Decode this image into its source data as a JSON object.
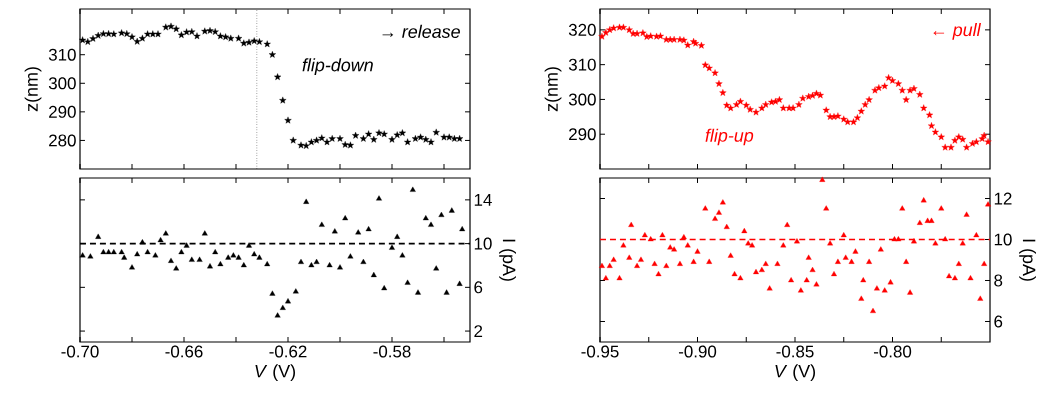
{
  "chart_data": [
    {
      "type": "scatter",
      "ylabel": "z(nm)",
      "marker": "star",
      "tick_labels": "y",
      "xlim": [
        -0.7,
        -0.55
      ],
      "xticks": [
        {
          "value": -0.7,
          "label": null
        },
        {
          "value": -0.68,
          "label": null
        },
        {
          "value": -0.66,
          "label": null
        },
        {
          "value": -0.64,
          "label": null
        },
        {
          "value": -0.62,
          "label": null
        },
        {
          "value": -0.6,
          "label": null
        },
        {
          "value": -0.58,
          "label": null
        },
        {
          "value": -0.56,
          "label": null
        }
      ],
      "ylim": [
        270,
        326
      ],
      "yticks": [
        280,
        290,
        300,
        310
      ],
      "annotations": [
        "→ release",
        "flip-down"
      ],
      "ref_lines": [
        {
          "axis": "x",
          "value": -0.632,
          "line_style": "dotted",
          "color": "#000000"
        }
      ],
      "series": [
        {
          "color": "#000000",
          "x": [
            -0.699,
            -0.697,
            -0.695,
            -0.693,
            -0.691,
            -0.689,
            -0.687,
            -0.684,
            -0.682,
            -0.68,
            -0.678,
            -0.676,
            -0.674,
            -0.672,
            -0.67,
            -0.667,
            -0.665,
            -0.663,
            -0.661,
            -0.659,
            -0.657,
            -0.655,
            -0.652,
            -0.65,
            -0.648,
            -0.646,
            -0.644,
            -0.642,
            -0.639,
            -0.637,
            -0.635,
            -0.633,
            -0.631,
            -0.628,
            -0.626,
            -0.624,
            -0.622,
            -0.62,
            -0.618,
            -0.615,
            -0.613,
            -0.611,
            -0.609,
            -0.607,
            -0.605,
            -0.603,
            -0.6,
            -0.598,
            -0.596,
            -0.594,
            -0.591,
            -0.589,
            -0.587,
            -0.585,
            -0.583,
            -0.58,
            -0.578,
            -0.576,
            -0.574,
            -0.571,
            -0.569,
            -0.567,
            -0.565,
            -0.563,
            -0.56,
            -0.558,
            -0.556,
            -0.554
          ],
          "values": [
            315.1,
            314.5,
            315.6,
            316.7,
            317.3,
            317.3,
            317.2,
            317.6,
            317.3,
            316.2,
            314.6,
            315.7,
            317.2,
            317.2,
            317.2,
            319.6,
            319.9,
            319.0,
            316.9,
            317.9,
            318.0,
            316.5,
            318.2,
            318.4,
            318.0,
            316.5,
            316.2,
            315.7,
            315.7,
            314.0,
            314.3,
            314.8,
            314.5,
            313.7,
            310.0,
            302.2,
            294.0,
            287.0,
            280.0,
            278.3,
            278.1,
            279.4,
            280.0,
            280.8,
            279.4,
            280.6,
            280.6,
            278.5,
            278.3,
            281.7,
            280.6,
            282.2,
            280.3,
            282.6,
            282.2,
            280.3,
            281.9,
            282.6,
            279.4,
            280.6,
            281.1,
            280.3,
            279.4,
            282.8,
            281.1,
            281.1,
            280.6,
            280.6
          ]
        }
      ]
    },
    {
      "type": "scatter",
      "ylabel": "z(nm)",
      "marker": "star",
      "tick_labels": "y",
      "xlim": [
        -0.95,
        -0.75
      ],
      "xticks": [
        {
          "value": -0.95,
          "label": null
        },
        {
          "value": -0.925,
          "label": null
        },
        {
          "value": -0.9,
          "label": null
        },
        {
          "value": -0.875,
          "label": null
        },
        {
          "value": -0.85,
          "label": null
        },
        {
          "value": -0.825,
          "label": null
        },
        {
          "value": -0.8,
          "label": null
        },
        {
          "value": -0.775,
          "label": null
        }
      ],
      "ylim": [
        280,
        326
      ],
      "yticks": [
        290,
        300,
        310,
        320
      ],
      "annotations": [
        "← pull",
        "flip-up"
      ],
      "series": [
        {
          "color": "#ff0000",
          "x": [
            -0.949,
            -0.947,
            -0.945,
            -0.943,
            -0.94,
            -0.938,
            -0.935,
            -0.933,
            -0.931,
            -0.928,
            -0.926,
            -0.924,
            -0.921,
            -0.919,
            -0.916,
            -0.914,
            -0.912,
            -0.909,
            -0.907,
            -0.905,
            -0.902,
            -0.901,
            -0.898,
            -0.896,
            -0.894,
            -0.891,
            -0.889,
            -0.887,
            -0.885,
            -0.883,
            -0.88,
            -0.878,
            -0.875,
            -0.873,
            -0.87,
            -0.867,
            -0.865,
            -0.862,
            -0.86,
            -0.858,
            -0.856,
            -0.853,
            -0.851,
            -0.848,
            -0.846,
            -0.843,
            -0.841,
            -0.839,
            -0.837,
            -0.834,
            -0.832,
            -0.83,
            -0.828,
            -0.825,
            -0.823,
            -0.82,
            -0.818,
            -0.816,
            -0.814,
            -0.812,
            -0.809,
            -0.807,
            -0.804,
            -0.802,
            -0.8,
            -0.797,
            -0.795,
            -0.793,
            -0.791,
            -0.789,
            -0.786,
            -0.784,
            -0.781,
            -0.78,
            -0.778,
            -0.775,
            -0.773,
            -0.77,
            -0.768,
            -0.766,
            -0.764,
            -0.762,
            -0.759,
            -0.757,
            -0.754,
            -0.753,
            -0.751
          ],
          "values": [
            318.1,
            319.2,
            320.0,
            320.5,
            320.7,
            320.7,
            320.0,
            318.9,
            318.9,
            319.1,
            318.0,
            318.2,
            318.1,
            318.2,
            317.2,
            317.2,
            317.2,
            317.2,
            317.0,
            315.6,
            316.6,
            316.1,
            315.5,
            309.9,
            309.0,
            307.6,
            304.5,
            301.9,
            298.3,
            297.5,
            298.5,
            299.4,
            298.3,
            297.1,
            296.3,
            297.5,
            298.5,
            299.2,
            299.4,
            299.9,
            297.5,
            297.5,
            297.5,
            298.5,
            300.3,
            300.8,
            301.1,
            301.7,
            301.2,
            296.9,
            295.0,
            295.0,
            295.2,
            294.3,
            293.5,
            293.5,
            294.7,
            296.6,
            298.5,
            299.9,
            302.6,
            303.3,
            303.8,
            306.2,
            305.4,
            304.5,
            302.6,
            299.9,
            302.6,
            303.1,
            301.4,
            297.5,
            295.5,
            292.4,
            290.6,
            289.2,
            286.2,
            286.2,
            288.2,
            289.2,
            288.5,
            286.2,
            287.3,
            287.8,
            288.7,
            289.6,
            287.8
          ]
        }
      ]
    },
    {
      "type": "scatter",
      "xlabel": "*V* (V)",
      "y2label": "I (pA)",
      "marker": "triangle",
      "xlim": [
        -0.7,
        -0.55
      ],
      "xticks": [
        {
          "value": -0.7,
          "label": "-0.70"
        },
        {
          "value": -0.68,
          "label": null
        },
        {
          "value": -0.66,
          "label": "-0.66"
        },
        {
          "value": -0.64,
          "label": null
        },
        {
          "value": -0.62,
          "label": "-0.62"
        },
        {
          "value": -0.6,
          "label": null
        },
        {
          "value": -0.58,
          "label": "-0.58"
        },
        {
          "value": -0.56,
          "label": null
        }
      ],
      "y2lim": [
        1,
        16
      ],
      "y2ticks": [
        2,
        6,
        10,
        14
      ],
      "ref_lines": [
        {
          "axis": "y2",
          "value": 10,
          "line_style": "dashed",
          "color": "#000000"
        }
      ],
      "series": [
        {
          "color": "#000000",
          "axis": "y2",
          "x": [
            -0.699,
            -0.696,
            -0.693,
            -0.691,
            -0.689,
            -0.687,
            -0.684,
            -0.683,
            -0.68,
            -0.678,
            -0.676,
            -0.674,
            -0.671,
            -0.669,
            -0.667,
            -0.665,
            -0.663,
            -0.661,
            -0.659,
            -0.657,
            -0.654,
            -0.652,
            -0.65,
            -0.648,
            -0.646,
            -0.643,
            -0.641,
            -0.639,
            -0.637,
            -0.635,
            -0.633,
            -0.631,
            -0.628,
            -0.626,
            -0.624,
            -0.622,
            -0.62,
            -0.617,
            -0.615,
            -0.613,
            -0.611,
            -0.609,
            -0.607,
            -0.604,
            -0.602,
            -0.6,
            -0.598,
            -0.596,
            -0.593,
            -0.591,
            -0.589,
            -0.587,
            -0.585,
            -0.583,
            -0.58,
            -0.578,
            -0.576,
            -0.574,
            -0.572,
            -0.57,
            -0.567,
            -0.565,
            -0.563,
            -0.561,
            -0.559,
            -0.557,
            -0.554,
            -0.553
          ],
          "values": [
            8.9,
            8.8,
            10.6,
            9.2,
            9.2,
            9.2,
            9.2,
            8.7,
            7.8,
            9.0,
            10.1,
            9.2,
            8.9,
            10.3,
            10.9,
            8.4,
            7.7,
            9.2,
            9.8,
            8.5,
            8.5,
            10.9,
            7.9,
            9.2,
            8.1,
            8.7,
            8.9,
            8.7,
            8.0,
            9.8,
            9.0,
            8.7,
            8.1,
            5.4,
            3.4,
            4.1,
            4.7,
            5.6,
            8.3,
            13.8,
            8.0,
            8.3,
            11.7,
            8.0,
            11.1,
            7.8,
            12.3,
            8.8,
            11.0,
            8.3,
            11.3,
            7.1,
            14.1,
            5.9,
            9.6,
            10.6,
            8.9,
            6.4,
            14.9,
            5.5,
            12.3,
            11.7,
            7.7,
            12.6,
            5.5,
            13.0,
            6.3,
            11.3
          ]
        }
      ]
    },
    {
      "type": "scatter",
      "xlabel": "*V* (V)",
      "y2label": "I (pA)",
      "marker": "triangle",
      "xlim": [
        -0.95,
        -0.75
      ],
      "xticks": [
        {
          "value": -0.95,
          "label": "-0.95"
        },
        {
          "value": -0.925,
          "label": null
        },
        {
          "value": -0.9,
          "label": "-0.90"
        },
        {
          "value": -0.875,
          "label": null
        },
        {
          "value": -0.85,
          "label": "-0.85"
        },
        {
          "value": -0.825,
          "label": null
        },
        {
          "value": -0.8,
          "label": "-0.80"
        },
        {
          "value": -0.775,
          "label": null
        }
      ],
      "y2lim": [
        5,
        13
      ],
      "y2ticks": [
        6,
        8,
        10,
        12
      ],
      "ref_lines": [
        {
          "axis": "y2",
          "value": 10,
          "line_style": "dashed",
          "color": "#ff0000"
        }
      ],
      "series": [
        {
          "color": "#ff0000",
          "axis": "y2",
          "x": [
            -0.949,
            -0.947,
            -0.945,
            -0.943,
            -0.94,
            -0.938,
            -0.935,
            -0.934,
            -0.931,
            -0.929,
            -0.927,
            -0.924,
            -0.922,
            -0.92,
            -0.918,
            -0.916,
            -0.914,
            -0.912,
            -0.909,
            -0.907,
            -0.905,
            -0.902,
            -0.9,
            -0.896,
            -0.894,
            -0.891,
            -0.889,
            -0.887,
            -0.885,
            -0.883,
            -0.881,
            -0.878,
            -0.876,
            -0.874,
            -0.872,
            -0.87,
            -0.867,
            -0.865,
            -0.863,
            -0.859,
            -0.856,
            -0.854,
            -0.852,
            -0.849,
            -0.847,
            -0.844,
            -0.843,
            -0.841,
            -0.839,
            -0.836,
            -0.834,
            -0.832,
            -0.83,
            -0.828,
            -0.825,
            -0.824,
            -0.821,
            -0.819,
            -0.816,
            -0.815,
            -0.812,
            -0.81,
            -0.808,
            -0.806,
            -0.804,
            -0.801,
            -0.799,
            -0.797,
            -0.795,
            -0.793,
            -0.791,
            -0.789,
            -0.786,
            -0.784,
            -0.782,
            -0.78,
            -0.778,
            -0.775,
            -0.773,
            -0.771,
            -0.768,
            -0.766,
            -0.764,
            -0.762,
            -0.76,
            -0.757,
            -0.755,
            -0.753,
            -0.751
          ],
          "values": [
            8.7,
            8.1,
            8.7,
            9.0,
            8.1,
            9.7,
            9.1,
            10.7,
            8.7,
            9.0,
            10.2,
            10.0,
            8.8,
            8.3,
            10.2,
            8.7,
            9.6,
            9.5,
            8.8,
            10.1,
            9.7,
            8.9,
            9.4,
            11.5,
            8.9,
            11.0,
            11.3,
            11.8,
            10.6,
            9.2,
            8.3,
            8.1,
            10.4,
            9.8,
            9.7,
            8.4,
            8.5,
            8.8,
            7.6,
            8.8,
            9.7,
            10.7,
            8.0,
            9.9,
            7.5,
            8.0,
            9.1,
            8.5,
            7.8,
            12.9,
            11.5,
            9.8,
            8.3,
            8.9,
            10.2,
            9.1,
            8.9,
            9.4,
            7.1,
            8.0,
            8.9,
            6.5,
            7.6,
            9.5,
            7.5,
            7.9,
            10.0,
            10.0,
            11.5,
            8.9,
            7.4,
            9.9,
            10.8,
            11.9,
            10.9,
            10.9,
            9.8,
            11.5,
            10.0,
            8.2,
            8.1,
            8.8,
            9.8,
            11.2,
            8.1,
            10.2,
            7.1,
            8.8,
            11.7
          ]
        }
      ]
    }
  ]
}
